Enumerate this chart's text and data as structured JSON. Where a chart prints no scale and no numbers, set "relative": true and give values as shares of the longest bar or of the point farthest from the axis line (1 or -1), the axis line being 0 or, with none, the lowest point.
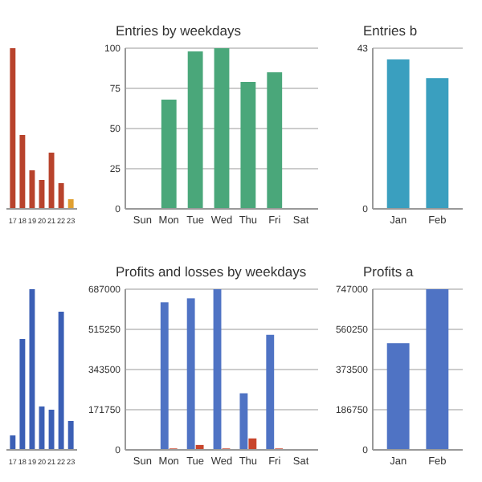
{
  "chart_data": [
    {
      "type": "bar",
      "relative": true,
      "categories": [
        "17",
        "18",
        "19",
        "20",
        "21",
        "22",
        "23"
      ],
      "values": [
        1,
        0.46,
        0.24,
        0.18,
        0.35,
        0.16,
        0.06
      ],
      "colors": [
        "#b8432c",
        "#b8432c",
        "#b8432c",
        "#b8432c",
        "#b8432c",
        "#b8432c",
        "#e0a030"
      ]
    },
    {
      "type": "bar",
      "title": "Entries by weekdays",
      "categories": [
        "Sun",
        "Mon",
        "Tue",
        "Wed",
        "Thu",
        "Fri",
        "Sat"
      ],
      "values": [
        0,
        68,
        98,
        100,
        79,
        85,
        0
      ],
      "color": "#4aa77a",
      "ylim": [
        0,
        100
      ],
      "yticks": [
        0,
        25,
        50,
        75,
        100
      ],
      "grid": "y"
    },
    {
      "type": "bar",
      "title": "Entries b",
      "categories": [
        "Jan",
        "Feb"
      ],
      "values": [
        40,
        35
      ],
      "color": "#3a9fbf",
      "ylim": [
        0,
        43
      ],
      "yticks": [
        0,
        43
      ],
      "grid": "y"
    },
    {
      "type": "bar",
      "relative": true,
      "categories": [
        "17",
        "18",
        "19",
        "20",
        "21",
        "22",
        "23"
      ],
      "values": [
        0.09,
        0.69,
        1,
        0.27,
        0.25,
        0.86,
        0.18
      ],
      "color": "#3b5fb5"
    },
    {
      "type": "bar",
      "title": "Profits and losses by weekdays",
      "categories": [
        "Sun",
        "Mon",
        "Tue",
        "Wed",
        "Thu",
        "Fri",
        "Sat"
      ],
      "ylim": [
        0,
        687000
      ],
      "yticks": [
        0,
        171750,
        343500,
        515250,
        687000
      ],
      "grid": "y",
      "series": [
        {
          "color": "#4f73c4",
          "values": [
            0,
            631000,
            648000,
            687000,
            242000,
            492000,
            0
          ]
        },
        {
          "color": "#c8452c",
          "values": [
            0,
            6000,
            21000,
            6000,
            49000,
            6000,
            0
          ]
        }
      ]
    },
    {
      "type": "bar",
      "title": "Profits a",
      "categories": [
        "Jan",
        "Feb"
      ],
      "ylim": [
        0,
        747000
      ],
      "yticks": [
        0,
        186750,
        373500,
        560250,
        747000
      ],
      "grid": "y",
      "series": [
        {
          "color": "#4f73c4",
          "values": [
            496000,
            747000
          ]
        }
      ]
    }
  ]
}
